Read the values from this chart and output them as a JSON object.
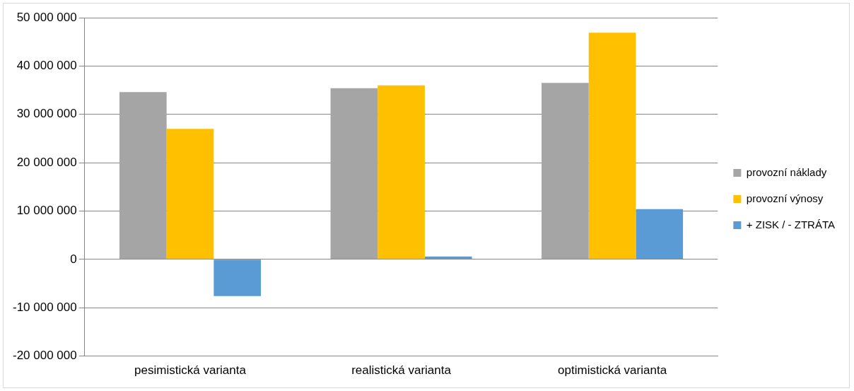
{
  "chart_data": {
    "type": "bar",
    "categories": [
      "pesimistická varianta",
      "realistická varianta",
      "optimistická varianta"
    ],
    "series": [
      {
        "name": "provozní náklady",
        "color": "#a5a5a5",
        "values": [
          34600000,
          35400000,
          36500000
        ]
      },
      {
        "name": "provozní výnosy",
        "color": "#ffc000",
        "values": [
          27000000,
          36000000,
          46900000
        ]
      },
      {
        "name": "+ ZISK / - ZTRÁTA",
        "color": "#5b9bd5",
        "values": [
          -7600000,
          600000,
          10400000
        ]
      }
    ],
    "ylim": [
      -20000000,
      50000000
    ],
    "yticks": [
      {
        "value": -20000000,
        "label": "-20 000 000"
      },
      {
        "value": -10000000,
        "label": "-10 000 000"
      },
      {
        "value": 0,
        "label": "0"
      },
      {
        "value": 10000000,
        "label": "10 000 000"
      },
      {
        "value": 20000000,
        "label": "20 000 000"
      },
      {
        "value": 30000000,
        "label": "30 000 000"
      },
      {
        "value": 40000000,
        "label": "40 000 000"
      },
      {
        "value": 50000000,
        "label": "50 000 000"
      }
    ],
    "grid": "y",
    "legend": "right"
  }
}
